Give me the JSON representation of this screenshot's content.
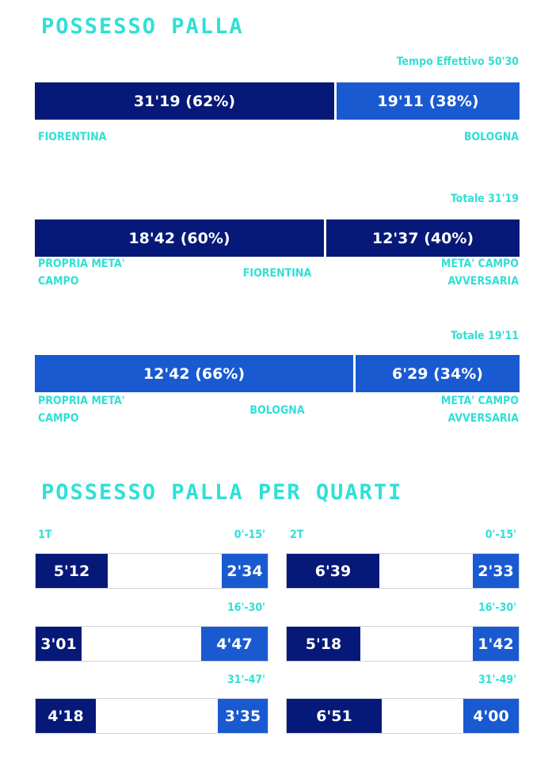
{
  "section1": {
    "title": "POSSESSO PALLA",
    "total_label": "Tempo Effettivo 50'30",
    "team_left": "FIORENTINA",
    "team_right": "BOLOGNA"
  },
  "section2": {
    "title": "POSSESSO PALLA PER QUARTI",
    "half1": "1T",
    "half2": "2T"
  },
  "chart_data": [
    {
      "type": "bar",
      "orientation": "horizontal-stacked",
      "series": [
        {
          "name": "FIORENTINA",
          "value_min": 31.3167,
          "label": "31'19 (62%)",
          "percent": 62,
          "color": "#061978"
        },
        {
          "name": "BOLOGNA",
          "value_min": 19.1833,
          "label": "19'11 (38%)",
          "percent": 38,
          "color": "#1a5ad0"
        }
      ]
    },
    {
      "type": "bar",
      "orientation": "horizontal-stacked",
      "team": "FIORENTINA",
      "total_label": "Totale 31'19",
      "left_label": "PROPRIA META' CAMPO",
      "right_label": "META' CAMPO AVVERSARIA",
      "color": "#061978",
      "segments": [
        {
          "label": "18'42 (60%)",
          "percent": 60
        },
        {
          "label": "12'37 (40%)",
          "percent": 40
        }
      ]
    },
    {
      "type": "bar",
      "orientation": "horizontal-stacked",
      "team": "BOLOGNA",
      "total_label": "Totale 19'11",
      "left_label": "PROPRIA META' CAMPO",
      "right_label": "META' CAMPO AVVERSARIA",
      "color": "#1a5ad0",
      "segments": [
        {
          "label": "12'42 (66%)",
          "percent": 66
        },
        {
          "label": "6'29 (34%)",
          "percent": 34
        }
      ]
    },
    {
      "type": "table",
      "quarters": [
        {
          "half": "1T",
          "range": "0'-15'",
          "fiorentina": "5'12",
          "bologna": "2'34",
          "f_min": 5.2,
          "b_min": 2.5667
        },
        {
          "half": "1T",
          "range": "16'-30'",
          "fiorentina": "3'01",
          "bologna": "4'47",
          "f_min": 3.0167,
          "b_min": 4.7833
        },
        {
          "half": "1T",
          "range": "31'-47'",
          "fiorentina": "4'18",
          "bologna": "3'35",
          "f_min": 4.3,
          "b_min": 3.5833
        },
        {
          "half": "2T",
          "range": "0'-15'",
          "fiorentina": "6'39",
          "bologna": "2'33",
          "f_min": 6.65,
          "b_min": 2.55
        },
        {
          "half": "2T",
          "range": "16'-30'",
          "fiorentina": "5'18",
          "bologna": "1'42",
          "f_min": 5.3,
          "b_min": 1.7
        },
        {
          "half": "2T",
          "range": "31'-49'",
          "fiorentina": "6'51",
          "bologna": "4'00",
          "f_min": 6.85,
          "b_min": 4.0
        }
      ]
    }
  ]
}
